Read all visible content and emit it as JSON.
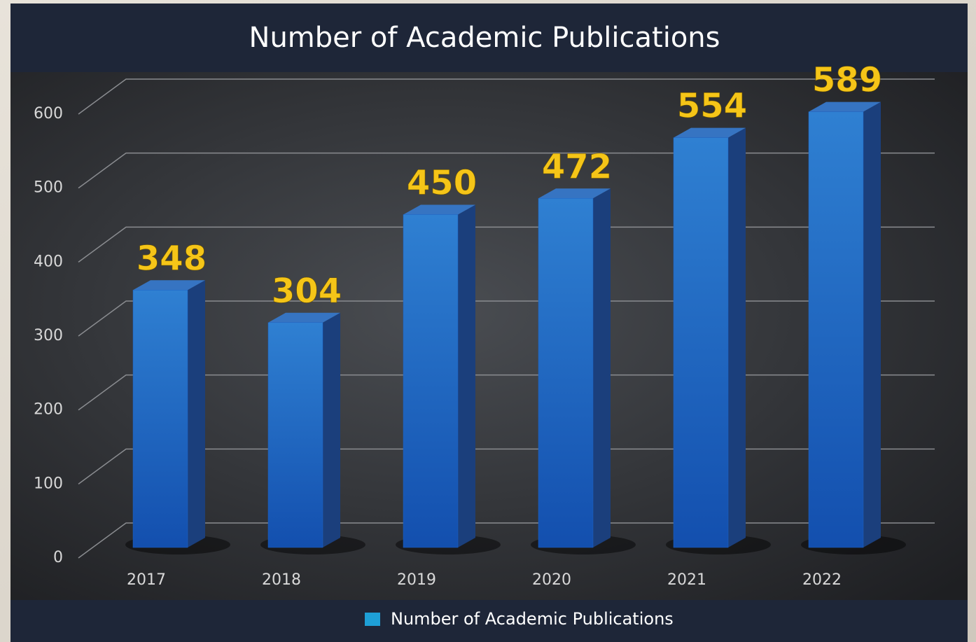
{
  "chart_data": {
    "type": "bar3d",
    "title": "Number of Academic Publications",
    "categories": [
      "2017",
      "2018",
      "2019",
      "2020",
      "2021",
      "2022"
    ],
    "series": [
      {
        "name": "Number of Academic Publications",
        "color": "#1d63c4",
        "legend_color": "#1e9fd6",
        "values": [
          348,
          304,
          450,
          472,
          554,
          589
        ]
      }
    ],
    "ylim": [
      0,
      600
    ],
    "yticks": [
      0,
      100,
      200,
      300,
      400,
      500,
      600
    ],
    "grid": true,
    "label_color": "#f5c518"
  }
}
